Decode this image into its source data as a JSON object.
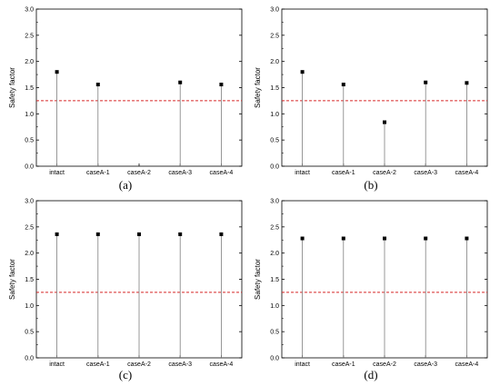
{
  "chart_data": [
    {
      "type": "scatter",
      "panel_label": "(a)",
      "ylabel": "Safety factor",
      "categories": [
        "intact",
        "caseA-1",
        "caseA-2",
        "caseA-3",
        "caseA-4"
      ],
      "values": [
        1.8,
        1.56,
        null,
        1.6,
        1.56
      ],
      "ylim": [
        0.0,
        3.0
      ],
      "yticks": [
        "0.0",
        "0.5",
        "1.0",
        "1.5",
        "2.0",
        "2.5",
        "3.0"
      ],
      "reference_line": {
        "y": 1.25,
        "color": "#d62728",
        "style": "dashed"
      },
      "marker_color": "#000000",
      "stem_color": "#7f7f7f",
      "grid": false
    },
    {
      "type": "scatter",
      "panel_label": "(b)",
      "ylabel": "Safety factor",
      "categories": [
        "intact",
        "caseA-1",
        "caseA-2",
        "caseA-3",
        "caseA-4"
      ],
      "values": [
        1.8,
        1.56,
        0.84,
        1.6,
        1.59
      ],
      "ylim": [
        0.0,
        3.0
      ],
      "yticks": [
        "0.0",
        "0.5",
        "1.0",
        "1.5",
        "2.0",
        "2.5",
        "3.0"
      ],
      "reference_line": {
        "y": 1.25,
        "color": "#d62728",
        "style": "dashed"
      },
      "marker_color": "#000000",
      "stem_color": "#7f7f7f",
      "grid": false
    },
    {
      "type": "scatter",
      "panel_label": "(c)",
      "ylabel": "Safety factor",
      "categories": [
        "intact",
        "caseA-1",
        "caseA-2",
        "caseA-3",
        "caseA-4"
      ],
      "values": [
        2.36,
        2.36,
        2.36,
        2.36,
        2.36
      ],
      "ylim": [
        0.0,
        3.0
      ],
      "yticks": [
        "0.0",
        "0.5",
        "1.0",
        "1.5",
        "2.0",
        "2.5",
        "3.0"
      ],
      "reference_line": {
        "y": 1.25,
        "color": "#d62728",
        "style": "dashed"
      },
      "marker_color": "#000000",
      "stem_color": "#7f7f7f",
      "grid": false
    },
    {
      "type": "scatter",
      "panel_label": "(d)",
      "ylabel": "Safety factor",
      "categories": [
        "intact",
        "caseA-1",
        "caseA-2",
        "caseA-3",
        "caseA-4"
      ],
      "values": [
        2.28,
        2.28,
        2.28,
        2.28,
        2.28
      ],
      "ylim": [
        0.0,
        3.0
      ],
      "yticks": [
        "0.0",
        "0.5",
        "1.0",
        "1.5",
        "2.0",
        "2.5",
        "3.0"
      ],
      "reference_line": {
        "y": 1.25,
        "color": "#d62728",
        "style": "dashed"
      },
      "marker_color": "#000000",
      "stem_color": "#7f7f7f",
      "grid": false
    }
  ]
}
